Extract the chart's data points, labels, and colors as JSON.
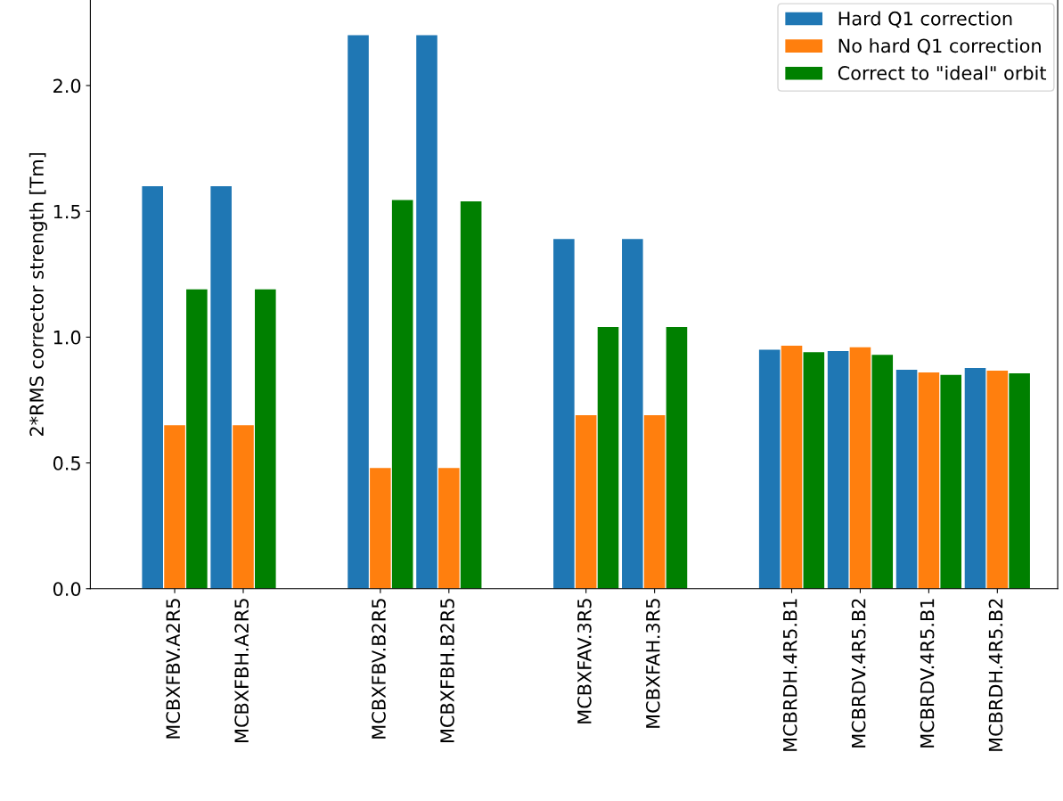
{
  "chart_data": {
    "type": "bar",
    "ylabel": "2*RMS corrector strength [Tm]",
    "categories": [
      "MCBXFBV.A2R5",
      "MCBXFBH.A2R5",
      null,
      "MCBXFBV.B2R5",
      "MCBXFBH.B2R5",
      null,
      "MCBXFAV.3R5",
      "MCBXFAH.3R5",
      null,
      "MCBRDH.4R5.B1",
      "MCBRDV.4R5.B2",
      "MCBRDV.4R5.B1",
      "MCBRDH.4R5.B2"
    ],
    "series": [
      {
        "name": "Hard Q1 correction",
        "color": "#1f77b4",
        "values": [
          1.6,
          1.6,
          null,
          2.2,
          2.2,
          null,
          1.39,
          1.39,
          null,
          0.95,
          0.945,
          0.87,
          0.877
        ]
      },
      {
        "name": "No hard Q1 correction",
        "color": "#ff7f0e",
        "values": [
          0.65,
          0.65,
          null,
          0.48,
          0.48,
          null,
          0.69,
          0.69,
          null,
          0.966,
          0.96,
          0.86,
          0.867
        ]
      },
      {
        "name": "Correct to \"ideal\" orbit",
        "color": "#008000",
        "values": [
          1.19,
          1.19,
          null,
          1.545,
          1.54,
          null,
          1.04,
          1.04,
          null,
          0.94,
          0.93,
          0.85,
          0.856
        ]
      }
    ],
    "ylim": [
      0,
      2.34
    ],
    "yticks": [
      {
        "value": 0,
        "label": "0.0"
      },
      {
        "value": 0.5,
        "label": "0.5"
      },
      {
        "value": 1,
        "label": "1.0"
      },
      {
        "value": 1.5,
        "label": "1.5"
      },
      {
        "value": 2,
        "label": "2.0"
      }
    ],
    "grid": false,
    "legend": "top right"
  }
}
